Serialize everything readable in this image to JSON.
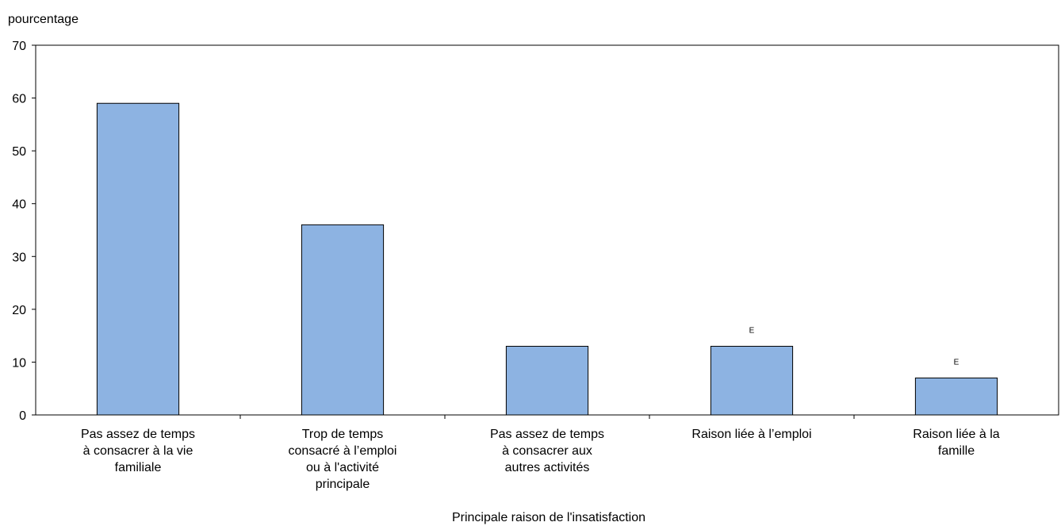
{
  "chart_data": {
    "type": "bar",
    "ylabel": "pourcentage",
    "xlabel": "Principale raison de l'insatisfaction",
    "ylim": [
      0,
      70
    ],
    "yticks": [
      0,
      10,
      20,
      30,
      40,
      50,
      60,
      70
    ],
    "grid": false,
    "categories": [
      [
        "Pas assez de temps",
        "à consacrer à la vie",
        "familiale"
      ],
      [
        "Trop de temps",
        "consacré à l’emploi",
        "ou à l'activité",
        "principale"
      ],
      [
        "Pas assez de temps",
        "à consacrer aux",
        "autres activités"
      ],
      [
        "Raison liée à l’emploi"
      ],
      [
        "Raison liée à la",
        "famille"
      ]
    ],
    "values": [
      59,
      36,
      13,
      13,
      7
    ],
    "flags": [
      "",
      "",
      "",
      "E",
      "E"
    ],
    "bar_color": "#8db3e2",
    "bar_stroke": "#000000"
  }
}
